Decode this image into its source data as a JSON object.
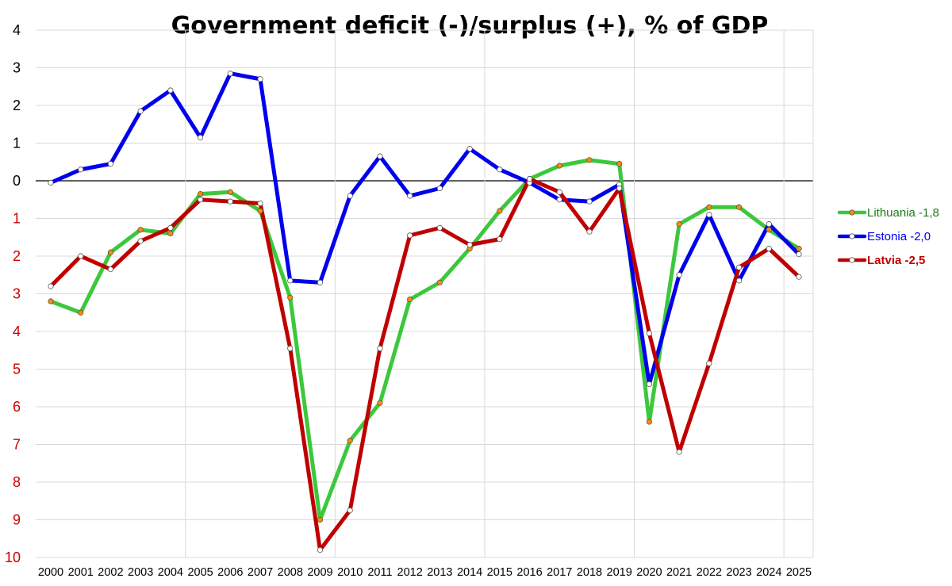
{
  "chart_data": {
    "type": "line",
    "title": "Government deficit (-)/surplus (+), % of GDP",
    "xlabel": "",
    "ylabel": "",
    "categories": [
      "2000",
      "2001",
      "2002",
      "2003",
      "2004",
      "2005",
      "2006",
      "2007",
      "2008",
      "2009",
      "2010",
      "2011",
      "2012",
      "2013",
      "2014",
      "2015",
      "2016",
      "2017",
      "2018",
      "2019",
      "2020",
      "2021",
      "2022",
      "2023",
      "2024",
      "2025"
    ],
    "ylim": [
      -10,
      4
    ],
    "y_ticks": [
      {
        "value": 4,
        "label": "4",
        "color": "#000000"
      },
      {
        "value": 3,
        "label": "3",
        "color": "#000000"
      },
      {
        "value": 2,
        "label": "2",
        "color": "#000000"
      },
      {
        "value": 1,
        "label": "1",
        "color": "#000000"
      },
      {
        "value": 0,
        "label": "0",
        "color": "#000000"
      },
      {
        "value": -1,
        "label": "1",
        "color": "#cc0000"
      },
      {
        "value": -2,
        "label": "2",
        "color": "#cc0000"
      },
      {
        "value": -3,
        "label": "3",
        "color": "#cc0000"
      },
      {
        "value": -4,
        "label": "4",
        "color": "#cc0000"
      },
      {
        "value": -5,
        "label": "5",
        "color": "#cc0000"
      },
      {
        "value": -6,
        "label": "6",
        "color": "#cc0000"
      },
      {
        "value": -7,
        "label": "7",
        "color": "#cc0000"
      },
      {
        "value": -8,
        "label": "8",
        "color": "#cc0000"
      },
      {
        "value": -9,
        "label": "9",
        "color": "#cc0000"
      },
      {
        "value": -10,
        "label": "10",
        "color": "#cc0000"
      }
    ],
    "grid": true,
    "legend_position": "right",
    "series": [
      {
        "name": "Lithuania -1,8",
        "color": "#3cc83c",
        "marker_color": "#ff8c00",
        "label_color": "#1f7a1f",
        "values": [
          -3.2,
          -3.5,
          -1.9,
          -1.3,
          -1.4,
          -0.35,
          -0.3,
          -0.8,
          -3.1,
          -9.0,
          -6.9,
          -5.9,
          -3.15,
          -2.7,
          -1.8,
          -0.8,
          0.05,
          0.4,
          0.55,
          0.45,
          -6.4,
          -1.15,
          -0.7,
          -0.7,
          -1.3,
          -1.8
        ]
      },
      {
        "name": "Estonia -2,0",
        "color": "#0000ee",
        "marker_color": "#ffffff",
        "label_color": "#0000ee",
        "values": [
          -0.05,
          0.3,
          0.45,
          1.85,
          2.4,
          1.15,
          2.85,
          2.7,
          -2.65,
          -2.7,
          -0.4,
          0.65,
          -0.4,
          -0.2,
          0.85,
          0.3,
          -0.05,
          -0.5,
          -0.55,
          -0.1,
          -5.4,
          -2.5,
          -0.9,
          -2.65,
          -1.15,
          -1.95
        ]
      },
      {
        "name": "Latvia -2,5",
        "color": "#c00000",
        "marker_color": "#ffffff",
        "label_color": "#c00000",
        "values": [
          -2.8,
          -2.0,
          -2.35,
          -1.6,
          -1.25,
          -0.5,
          -0.55,
          -0.6,
          -4.45,
          -9.8,
          -8.75,
          -4.45,
          -1.45,
          -1.25,
          -1.7,
          -1.55,
          0.05,
          -0.3,
          -1.35,
          -0.2,
          -4.05,
          -7.2,
          -4.85,
          -2.3,
          -1.8,
          -2.55
        ]
      }
    ]
  }
}
